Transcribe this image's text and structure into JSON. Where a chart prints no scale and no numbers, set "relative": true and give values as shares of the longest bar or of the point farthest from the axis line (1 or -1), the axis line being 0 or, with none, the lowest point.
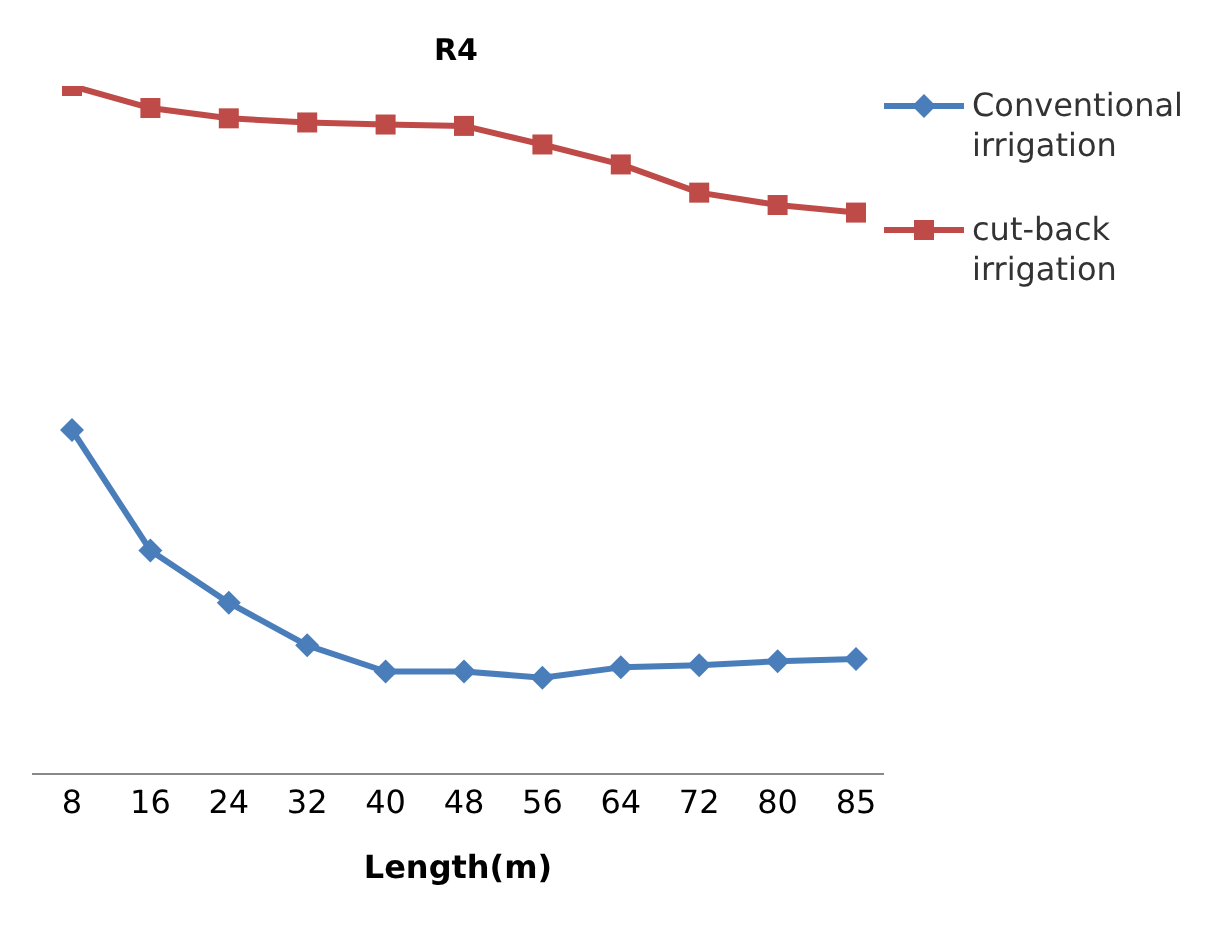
{
  "chart_data": {
    "type": "line",
    "title": "R4",
    "xlabel": "Length(m)",
    "relative": true,
    "legend": "top right",
    "line_style": "solid",
    "categories": [
      "8",
      "16",
      "24",
      "32",
      "40",
      "48",
      "56",
      "64",
      "72",
      "80",
      "85"
    ],
    "series": [
      {
        "name": "Conventional irrigation",
        "color": "#4a7ebb",
        "marker": "diamond",
        "values": [
          0.5,
          0.325,
          0.249,
          0.187,
          0.149,
          0.149,
          0.14,
          0.155,
          0.158,
          0.164,
          0.167
        ]
      },
      {
        "name": "cut-back irrigation",
        "color": "#be4b48",
        "marker": "square",
        "values": [
          1,
          0.968,
          0.953,
          0.947,
          0.944,
          0.942,
          0.915,
          0.886,
          0.845,
          0.827,
          0.816
        ]
      }
    ]
  }
}
